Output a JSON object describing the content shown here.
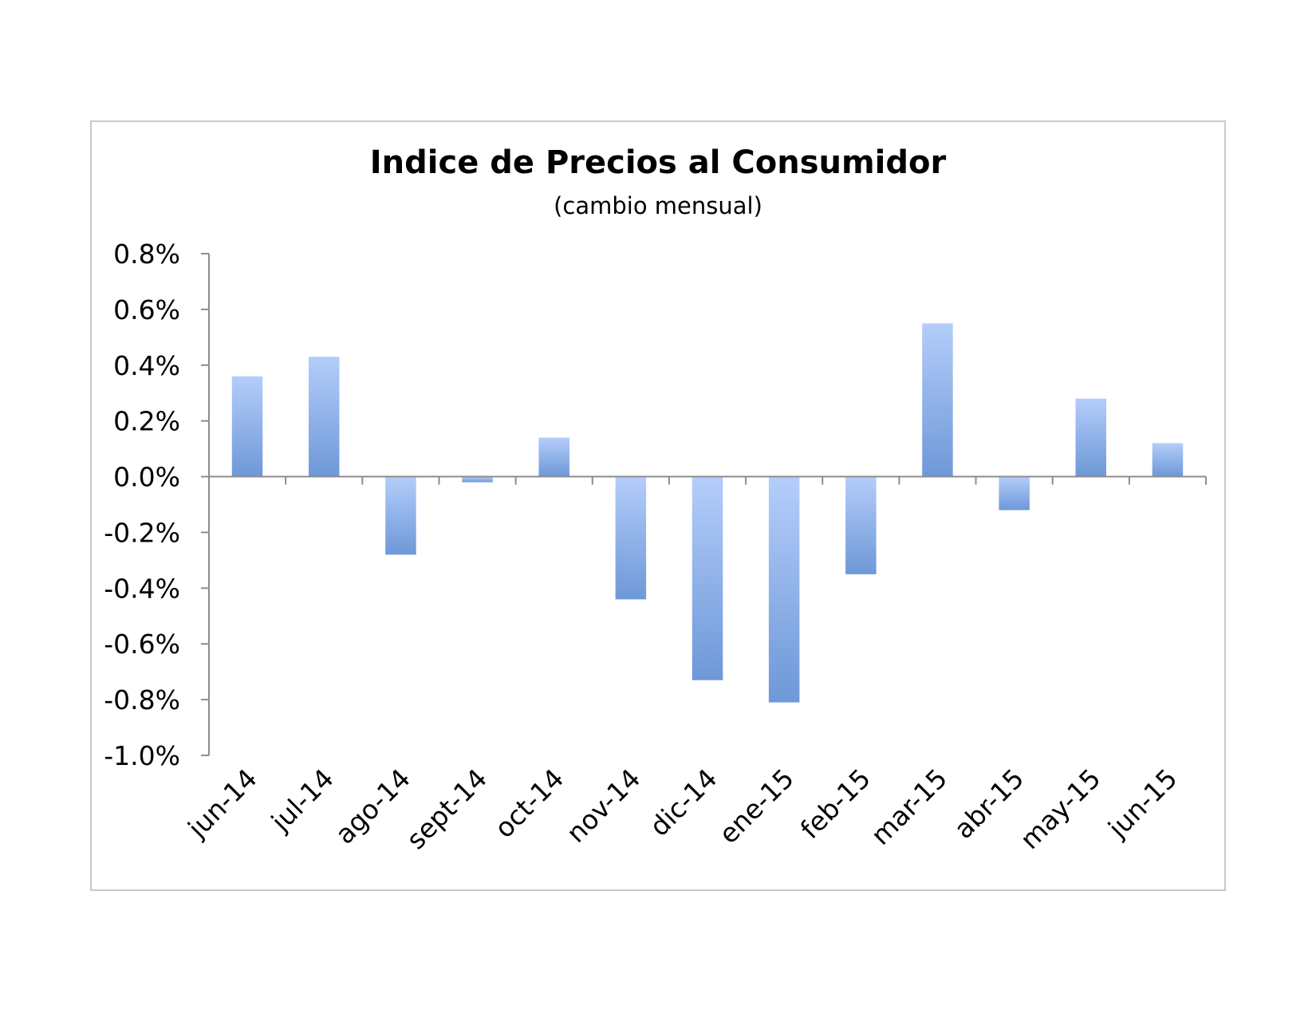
{
  "chart_data": {
    "type": "bar",
    "title": "Indice de Precios al Consumidor",
    "subtitle": "(cambio mensual)",
    "xlabel": "",
    "ylabel": "",
    "categories": [
      "jun-14",
      "jul-14",
      "ago-14",
      "sept-14",
      "oct-14",
      "nov-14",
      "dic-14",
      "ene-15",
      "feb-15",
      "mar-15",
      "abr-15",
      "may-15",
      "jun-15"
    ],
    "values": [
      0.36,
      0.43,
      -0.28,
      -0.02,
      0.14,
      -0.44,
      -0.73,
      -0.81,
      -0.35,
      0.55,
      -0.12,
      0.28,
      0.12
    ],
    "ylim": [
      -1.0,
      0.8
    ],
    "yticks": [
      "0.8%",
      "0.6%",
      "0.4%",
      "0.2%",
      "0.0%",
      "-0.2%",
      "-0.4%",
      "-0.6%",
      "-0.8%",
      "-1.0%"
    ],
    "ytick_values": [
      0.8,
      0.6,
      0.4,
      0.2,
      0.0,
      -0.2,
      -0.4,
      -0.6,
      -0.8,
      -1.0
    ],
    "grid": false,
    "legend": "none",
    "colors": {
      "bar_light": "#b4cdfa",
      "bar_dark": "#6e98d8",
      "axis": "#8c8c8c"
    }
  }
}
